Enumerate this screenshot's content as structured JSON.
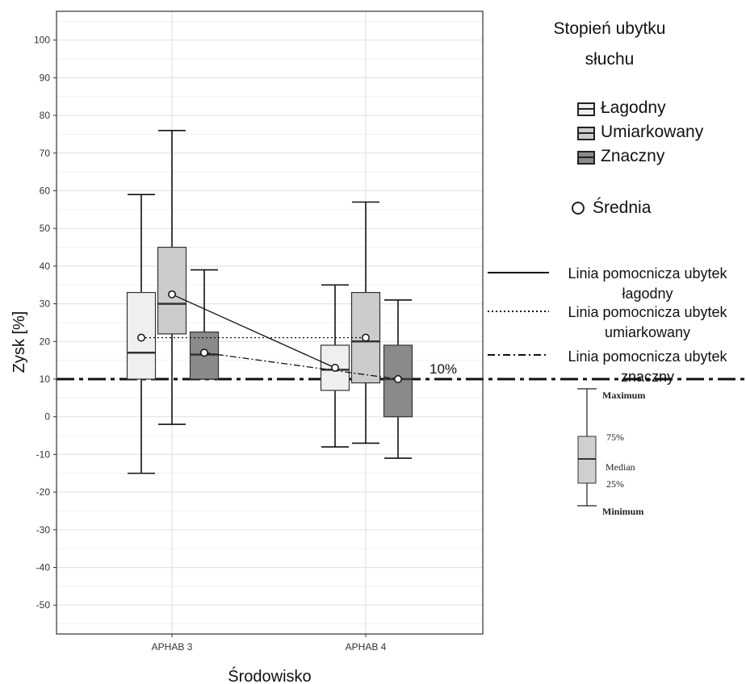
{
  "chart_data": {
    "type": "boxplot",
    "xlabel": "Środowisko",
    "ylabel": "Zysk [%]",
    "ylim": [
      -58,
      107
    ],
    "yticks": [
      -50,
      -40,
      -30,
      -20,
      -10,
      0,
      10,
      20,
      30,
      40,
      50,
      60,
      70,
      80,
      90,
      100
    ],
    "categories": [
      "APHAB 3",
      "APHAB 4"
    ],
    "reference_line": {
      "value": 10,
      "label": "10%"
    },
    "series": [
      {
        "name": "Łagodny",
        "color": "#efefef",
        "boxes": [
          {
            "category": "APHAB 3",
            "min": -15,
            "q1": 10,
            "median": 17,
            "q3": 33,
            "max": 59,
            "mean": 21
          },
          {
            "category": "APHAB 4",
            "min": -8,
            "q1": 7,
            "median": 12.5,
            "q3": 19,
            "max": 35,
            "mean": 13
          }
        ]
      },
      {
        "name": "Umiarkowany",
        "color": "#cccccc",
        "boxes": [
          {
            "category": "APHAB 3",
            "min": -2,
            "q1": 22,
            "median": 30,
            "q3": 45,
            "max": 76,
            "mean": 32.5
          },
          {
            "category": "APHAB 4",
            "min": -7,
            "q1": 9,
            "median": 20,
            "q3": 33,
            "max": 57,
            "mean": 21
          }
        ]
      },
      {
        "name": "Znaczny",
        "color": "#8a8a8a",
        "boxes": [
          {
            "category": "APHAB 3",
            "min": 10,
            "q1": 10,
            "median": 16.5,
            "q3": 22.5,
            "max": 39,
            "mean": 17
          },
          {
            "category": "APHAB 4",
            "min": -11,
            "q1": 0,
            "median": 10,
            "q3": 19,
            "max": 31,
            "mean": 10
          }
        ]
      }
    ],
    "guide_lines": [
      {
        "series": "Łagodny",
        "style": "solid",
        "from": "Umiarkowany",
        "label": "Linia pomocnicza ubytek łagodny"
      },
      {
        "series": "Umiarkowany",
        "style": "dotted",
        "from": "Łagodny",
        "label": "Linia pomocnicza ubytek umiarkowany"
      },
      {
        "series": "Znaczny",
        "style": "dashdot",
        "from": "Znaczny",
        "label": "Linia pomocnicza ubytek znaczny"
      }
    ],
    "grid": true
  },
  "legend": {
    "title_line1": "Stopień ubytku",
    "title_line2": "słuchu",
    "items": [
      "Łagodny",
      "Umiarkowany",
      "Znaczny"
    ],
    "mean_label": "Średnia",
    "guides": [
      {
        "line1": "Linia pomocnicza ubytek",
        "line2": "łagodny"
      },
      {
        "line1": "Linia pomocnicza ubytek",
        "line2": "umiarkowany"
      },
      {
        "line1": "Linia pomocnicza ubytek",
        "line2": "znaczny"
      }
    ]
  },
  "key": {
    "maximum": "Maximum",
    "q3": "75%",
    "median": "Median",
    "q1": "25%",
    "minimum": "Minimum"
  }
}
